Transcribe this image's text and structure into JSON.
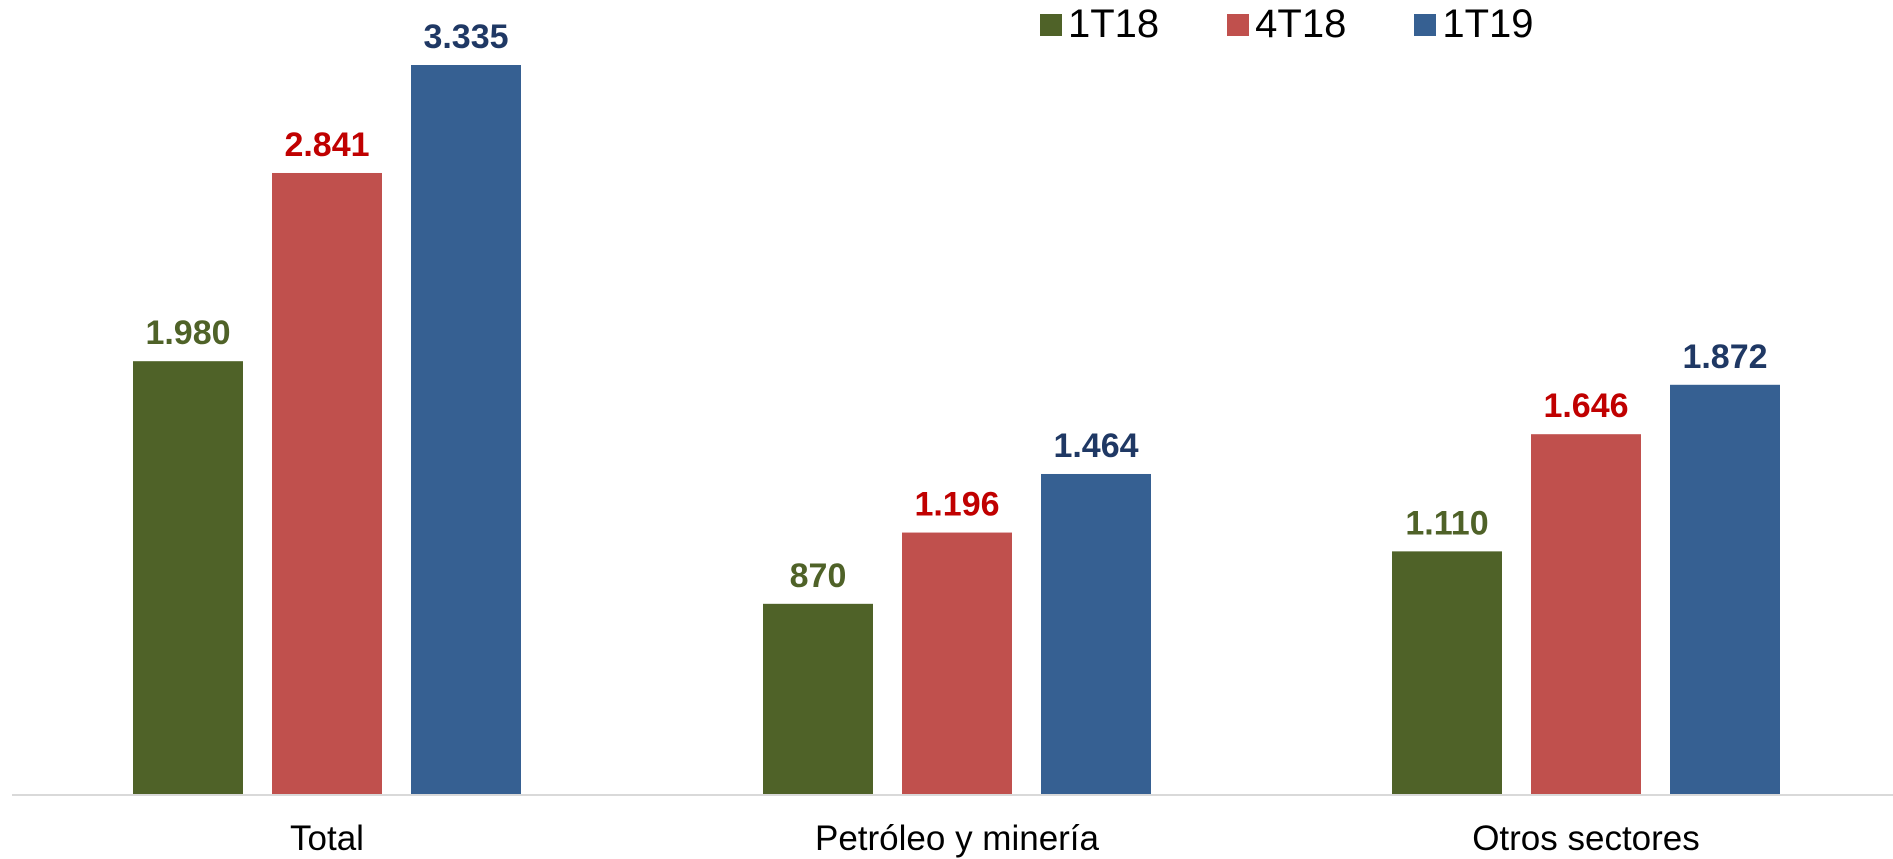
{
  "chart_data": {
    "type": "bar",
    "title": "",
    "xlabel": "",
    "ylabel": "",
    "categories": [
      "Total",
      "Petróleo y minería",
      "Otros sectores"
    ],
    "series": [
      {
        "name": "1T18",
        "color": "#4F6228",
        "label_color": "#4F6228",
        "values": [
          1980,
          870,
          1110
        ],
        "labels": [
          "1.980",
          "870",
          "1.110"
        ]
      },
      {
        "name": "4T18",
        "color": "#C0504D",
        "label_color": "#C00000",
        "values": [
          2841,
          1196,
          1646
        ],
        "labels": [
          "2.841",
          "1.196",
          "1.646"
        ]
      },
      {
        "name": "1T19",
        "color": "#366092",
        "label_color": "#1F3864",
        "values": [
          3335,
          1464,
          1872
        ],
        "labels": [
          "3.335",
          "1.464",
          "1.872"
        ]
      }
    ],
    "ylim": [
      0,
      3600
    ],
    "grid": false,
    "legend": "top-right",
    "axis_color": "#D9D9D9"
  }
}
